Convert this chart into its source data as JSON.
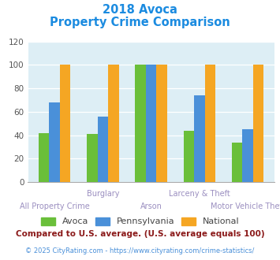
{
  "title_line1": "2018 Avoca",
  "title_line2": "Property Crime Comparison",
  "categories": [
    "All Property Crime",
    "Burglary",
    "Arson",
    "Larceny & Theft",
    "Motor Vehicle Theft"
  ],
  "avoca": [
    42,
    41,
    100,
    44,
    34
  ],
  "pennsylvania": [
    68,
    56,
    100,
    74,
    45
  ],
  "national": [
    100,
    100,
    100,
    100,
    100
  ],
  "avoca_color": "#6abf3a",
  "penn_color": "#4a90d9",
  "national_color": "#f5a623",
  "bg_color": "#ddeef5",
  "ylim": [
    0,
    120
  ],
  "yticks": [
    0,
    20,
    40,
    60,
    80,
    100,
    120
  ],
  "legend_labels": [
    "Avoca",
    "Pennsylvania",
    "National"
  ],
  "footnote1": "Compared to U.S. average. (U.S. average equals 100)",
  "footnote2": "© 2025 CityRating.com - https://www.cityrating.com/crime-statistics/",
  "title_color": "#1b8be0",
  "xlabel_color": "#9b8fc0",
  "footnote1_color": "#8b1a1a",
  "footnote2_color": "#4a90d9",
  "tick_color": "#555555"
}
